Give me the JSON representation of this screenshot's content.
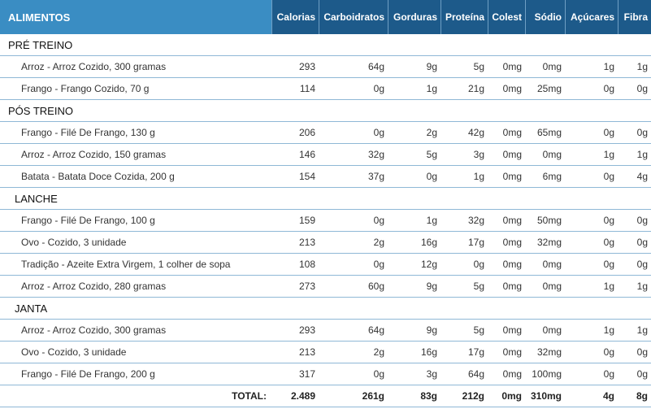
{
  "header": {
    "title": "ALIMENTOS",
    "columns": [
      "Calorias",
      "Carboidratos",
      "Gorduras",
      "Proteína",
      "Colest",
      "Sódio",
      "Açúcares",
      "Fibra"
    ]
  },
  "meals": [
    {
      "name": "PRÉ TREINO",
      "items": [
        {
          "name": "Arroz - Arroz Cozido, 300 gramas",
          "values": [
            "293",
            "64g",
            "9g",
            "5g",
            "0mg",
            "0mg",
            "1g",
            "1g"
          ]
        },
        {
          "name": "Frango - Frango Cozido, 70 g",
          "values": [
            "114",
            "0g",
            "1g",
            "21g",
            "0mg",
            "25mg",
            "0g",
            "0g"
          ]
        }
      ]
    },
    {
      "name": "PÓS TREINO",
      "items": [
        {
          "name": "Frango - Filé De Frango, 130 g",
          "values": [
            "206",
            "0g",
            "2g",
            "42g",
            "0mg",
            "65mg",
            "0g",
            "0g"
          ]
        },
        {
          "name": "Arroz - Arroz Cozido, 150 gramas",
          "values": [
            "146",
            "32g",
            "5g",
            "3g",
            "0mg",
            "0mg",
            "1g",
            "1g"
          ]
        },
        {
          "name": "Batata - Batata Doce Cozida, 200 g",
          "values": [
            "154",
            "37g",
            "0g",
            "1g",
            "0mg",
            "6mg",
            "0g",
            "4g"
          ]
        }
      ]
    },
    {
      "name": "LANCHE",
      "items": [
        {
          "name": "Frango - Filé De Frango, 100 g",
          "values": [
            "159",
            "0g",
            "1g",
            "32g",
            "0mg",
            "50mg",
            "0g",
            "0g"
          ]
        },
        {
          "name": "Ovo - Cozido, 3 unidade",
          "values": [
            "213",
            "2g",
            "16g",
            "17g",
            "0mg",
            "32mg",
            "0g",
            "0g"
          ]
        },
        {
          "name": "Tradição - Azeite Extra Virgem, 1 colher de sopa",
          "values": [
            "108",
            "0g",
            "12g",
            "0g",
            "0mg",
            "0mg",
            "0g",
            "0g"
          ]
        },
        {
          "name": "Arroz - Arroz Cozido, 280 gramas",
          "values": [
            "273",
            "60g",
            "9g",
            "5g",
            "0mg",
            "0mg",
            "1g",
            "1g"
          ]
        }
      ]
    },
    {
      "name": "JANTA",
      "items": [
        {
          "name": "Arroz - Arroz Cozido, 300 gramas",
          "values": [
            "293",
            "64g",
            "9g",
            "5g",
            "0mg",
            "0mg",
            "1g",
            "1g"
          ]
        },
        {
          "name": "Ovo - Cozido, 3 unidade",
          "values": [
            "213",
            "2g",
            "16g",
            "17g",
            "0mg",
            "32mg",
            "0g",
            "0g"
          ]
        },
        {
          "name": "Frango - Filé De Frango, 200 g",
          "values": [
            "317",
            "0g",
            "3g",
            "64g",
            "0mg",
            "100mg",
            "0g",
            "0g"
          ]
        }
      ]
    }
  ],
  "totals": {
    "label": "TOTAL:",
    "values": [
      "2.489",
      "261g",
      "83g",
      "212g",
      "0mg",
      "310mg",
      "4g",
      "8g"
    ]
  }
}
